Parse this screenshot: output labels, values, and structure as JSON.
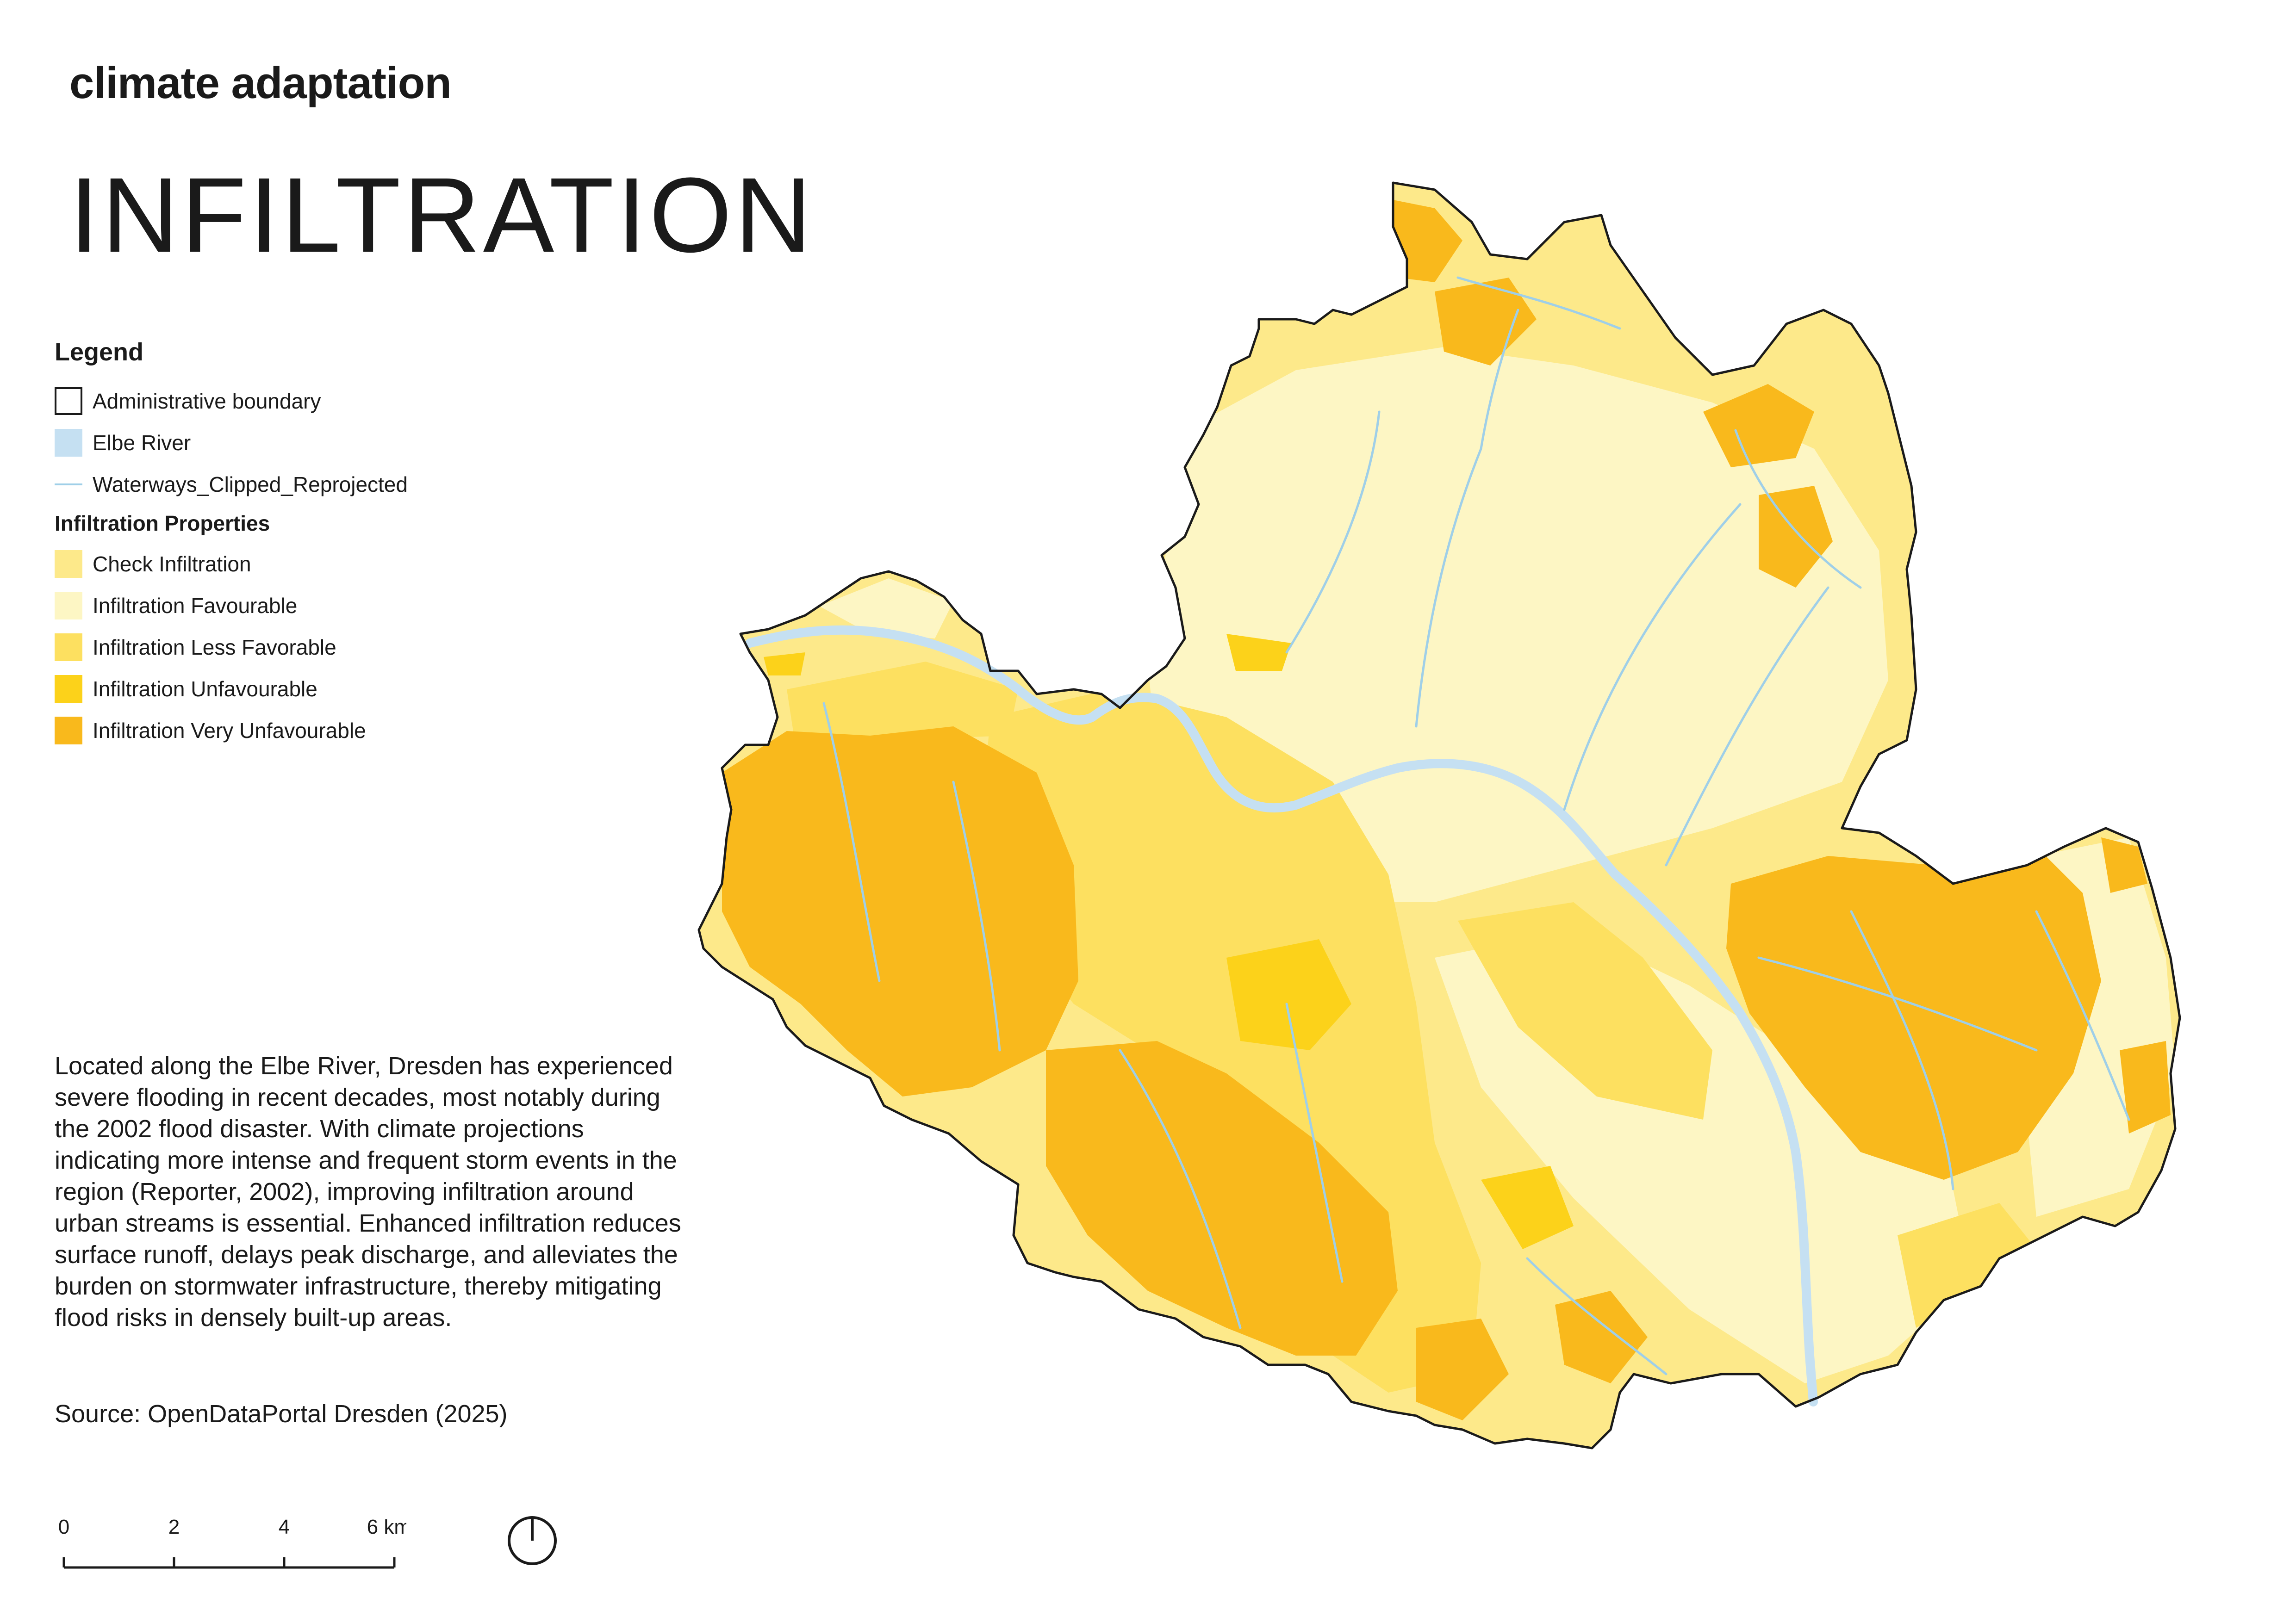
{
  "header": {
    "category": "climate adaptation",
    "title": "INFILTRATION"
  },
  "legend": {
    "heading": "Legend",
    "items": [
      {
        "label": "Administrative boundary",
        "kind": "outline",
        "color": "#1a1a1a"
      },
      {
        "label": "Elbe River",
        "kind": "fill",
        "color": "#c5e0f2"
      },
      {
        "label": "Waterways_Clipped_Reprojected",
        "kind": "line",
        "color": "#9fcfe8"
      }
    ],
    "section_title": "Infiltration Properties",
    "classes": [
      {
        "label": "Check Infiltration",
        "color": "#fde98a"
      },
      {
        "label": "Infiltration Favourable",
        "color": "#fdf6c4"
      },
      {
        "label": "Infiltration Less Favorable",
        "color": "#fde060"
      },
      {
        "label": "Infiltration Unfavourable",
        "color": "#fcd21a"
      },
      {
        "label": "Infiltration Very Unfavourable",
        "color": "#f9b91c"
      }
    ]
  },
  "description": "Located along the Elbe River, Dresden has experienced severe flooding in recent decades, most notably during the 2002 flood disaster. With climate projections indicating more intense and frequent storm events in the region (Reporter, 2002), improving infiltration around urban streams is essential. Enhanced infiltration reduces surface runoff, delays peak discharge, and alleviates the burden on stormwater infrastructure, thereby mitigating flood risks in densely built-up areas.",
  "source": "Source: OpenDataPortal Dresden (2025)",
  "scalebar": {
    "ticks": [
      "0",
      "2",
      "4",
      "6 km"
    ]
  },
  "north_arrow": {
    "icon": "north-arrow-icon"
  },
  "colors": {
    "boundary": "#1a1a1a",
    "river": "#c5e0f2",
    "waterways": "#9fcfe8"
  }
}
